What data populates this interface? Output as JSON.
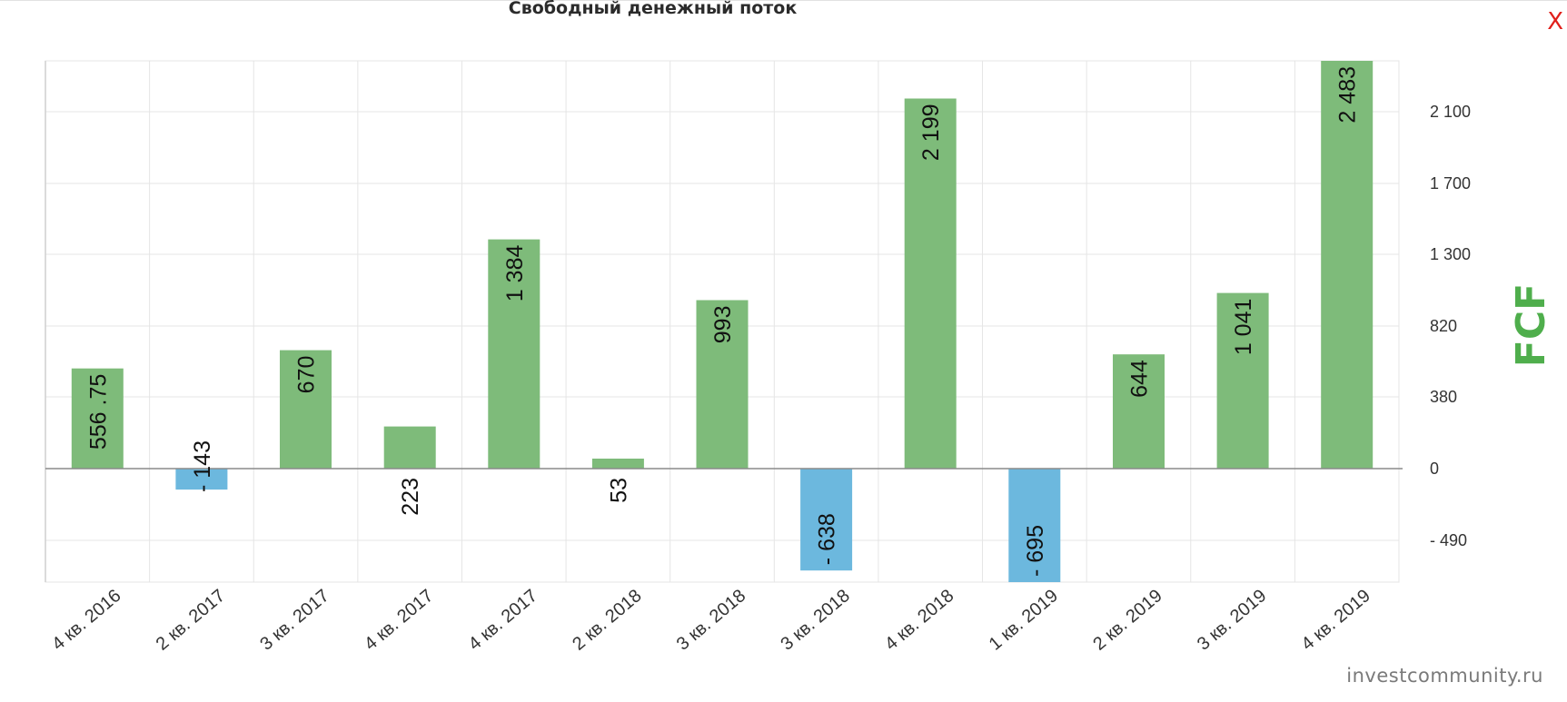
{
  "header": {
    "title": "Свободный денежный поток",
    "close_label": "X"
  },
  "footer": {
    "watermark": "investcommunity.ru"
  },
  "colors": {
    "positive": "#7ebb7a",
    "negative": "#6cb8de",
    "axis_title": "#4fae4c",
    "grid": "#e5e5e5",
    "zero_line": "#8a8a8a"
  },
  "chart_data": {
    "type": "bar",
    "title": "Свободный денежный поток",
    "ylabel": "FCF",
    "xlabel": "",
    "categories": [
      "4 кв. 2016",
      "2 кв. 2017",
      "3 кв. 2017",
      "4 кв. 2017",
      "4 кв. 2017",
      "2 кв. 2018",
      "3 кв. 2018",
      "3 кв. 2018",
      "4 кв. 2018",
      "1 кв. 2019",
      "2 кв. 2019",
      "3 кв. 2019",
      "4 кв. 2019"
    ],
    "values": [
      556.75,
      -143,
      670,
      223,
      1384,
      53,
      993,
      -638,
      2199,
      -695,
      644,
      1041,
      2483
    ],
    "data_labels": [
      "556 .75",
      "- 143",
      "670",
      "223",
      "1 384",
      "53",
      "993",
      "- 638",
      "2 199",
      "- 695",
      "644",
      "1 041",
      "2 483"
    ],
    "yticks": [
      {
        "value": -490,
        "label": "- 490"
      },
      {
        "value": 0,
        "label": "0"
      },
      {
        "value": 380,
        "label": "380"
      },
      {
        "value": 820,
        "label": "820"
      },
      {
        "value": 1300,
        "label": "1 300"
      },
      {
        "value": 1700,
        "label": "1 700"
      },
      {
        "value": 2100,
        "label": "2 100"
      }
    ],
    "ylim": [
      -695,
      2483
    ],
    "y_axis_side": "right",
    "grid": true,
    "legend": "none"
  }
}
